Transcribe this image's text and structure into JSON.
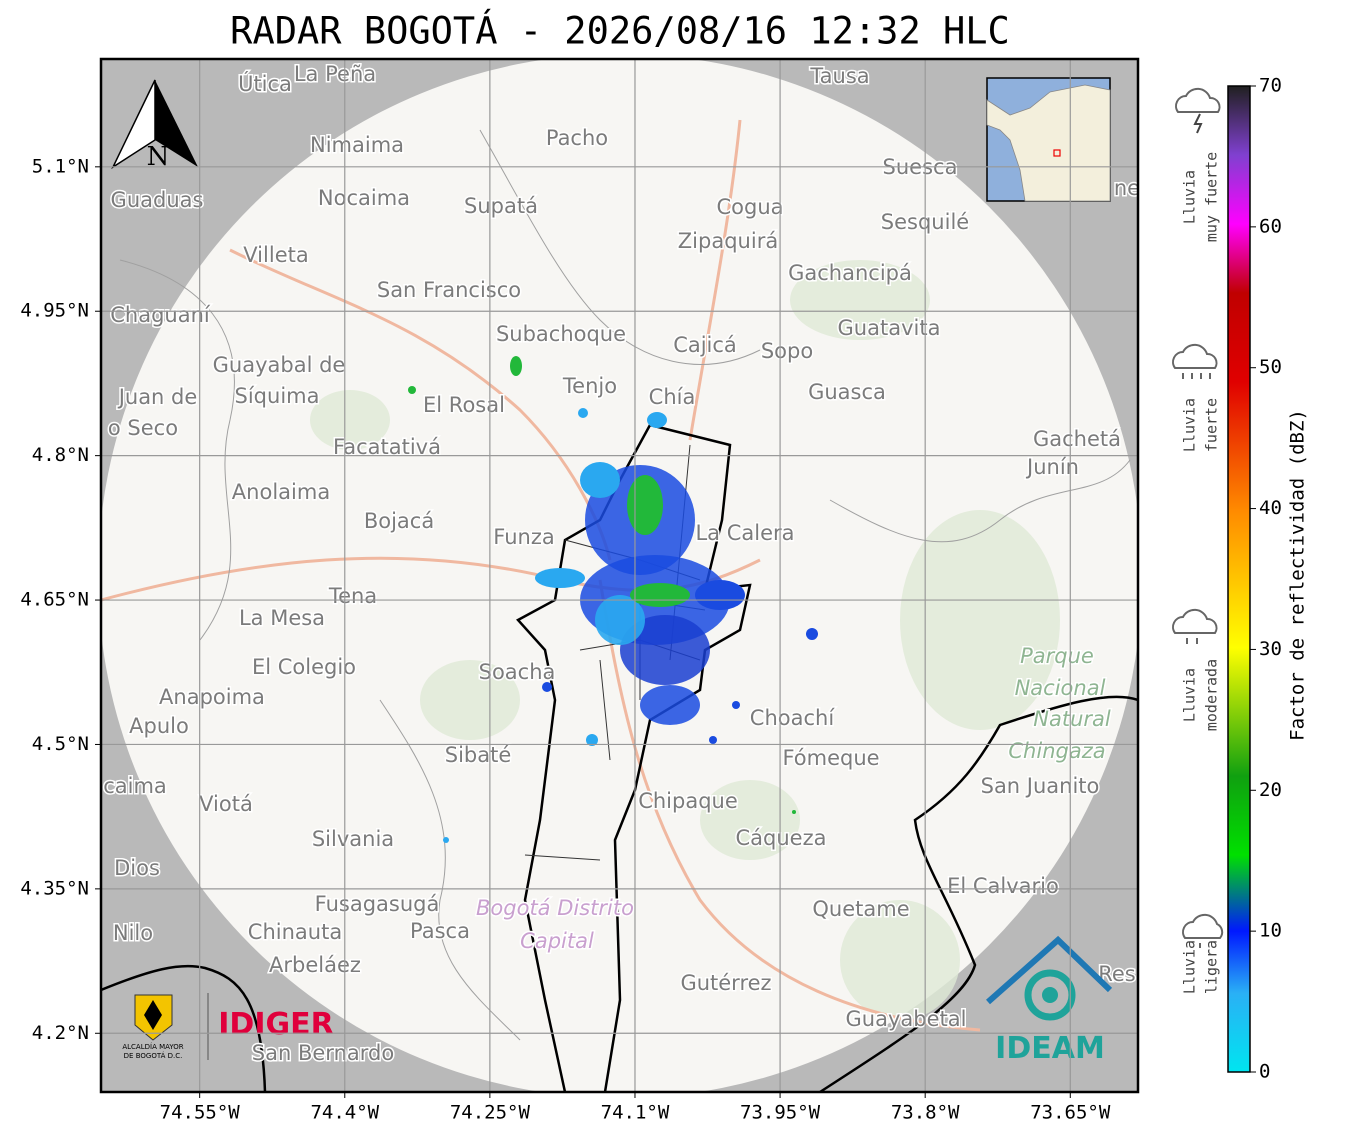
{
  "map": {
    "title": "RADAR BOGOTÁ - 2026/08/16 12:32 HLC",
    "xlim": [
      -74.652,
      -73.58
    ],
    "ylim": [
      4.139,
      5.212
    ],
    "xticks": [
      {
        "value": -74.55,
        "label": "74.55°W"
      },
      {
        "value": -74.4,
        "label": "74.4°W"
      },
      {
        "value": -74.25,
        "label": "74.25°W"
      },
      {
        "value": -74.1,
        "label": "74.1°W"
      },
      {
        "value": -73.95,
        "label": "73.95°W"
      },
      {
        "value": -73.8,
        "label": "73.8°W"
      },
      {
        "value": -73.65,
        "label": "73.65°W"
      }
    ],
    "yticks": [
      {
        "value": 5.1,
        "label": "5.1°N"
      },
      {
        "value": 4.95,
        "label": "4.95°N"
      },
      {
        "value": 4.8,
        "label": "4.8°N"
      },
      {
        "value": 4.65,
        "label": "4.65°N"
      },
      {
        "value": 4.5,
        "label": "4.5°N"
      },
      {
        "value": 4.35,
        "label": "4.35°N"
      },
      {
        "value": 4.2,
        "label": "4.2°N"
      }
    ],
    "grid": true,
    "north": "N",
    "places": [
      "Útica",
      "La Peña",
      "Tausa",
      "Pacho",
      "Nimaima",
      "Guaduas",
      "Nocaima",
      "Supatá",
      "Cogua",
      "Suesca",
      "Sesquilé",
      "Zipaquirá",
      "Villeta",
      "Gachancipá",
      "San Francisco",
      "Chaguaní",
      "Guatavita",
      "Subachoque",
      "Cajicá",
      "Sopo",
      "Guayabal de",
      "Síquima",
      "Juan de",
      "o Seco",
      "Tenjo",
      "Chía",
      "Guasca",
      "El Rosal",
      "Facatativá",
      "Gachetá",
      "Junín",
      "Anolaima",
      "Bojacá",
      "Funza",
      "La Calera",
      "Tena",
      "La Mesa",
      "El Colegio",
      "Soacha",
      "Anapoima",
      "Apulo",
      "Choachí",
      "Sibaté",
      "Fómeque",
      "San Juanito",
      "caima",
      "Viotá",
      "Chipaque",
      "Silvania",
      "Cáqueza",
      "Dios",
      "El Calvario",
      "Fusagasugá",
      "Quetame",
      "Nilo",
      "Chinauta",
      "Pasca",
      "Arbeláez",
      "Gutérrez",
      "Guayabetal",
      "San Bernardo",
      "Res",
      "ne"
    ],
    "park": [
      "Parque",
      "Nacional",
      "Natural",
      "Chingaza"
    ],
    "district": [
      "Bogotá Distrito",
      "Capital"
    ],
    "logos": {
      "alcaldia": [
        "ALCALDÍA MAYOR",
        "DE BOGOTÁ D.C."
      ],
      "idiger": "IDIGER",
      "ideam": "IDEAM"
    }
  },
  "colorbar": {
    "label": "Factor de reflectividad (dBZ)",
    "lim": [
      0,
      70
    ],
    "ticks": [
      0,
      10,
      20,
      30,
      40,
      50,
      60,
      70
    ],
    "legend": [
      [
        "Lluvia",
        "muy fuerte"
      ],
      [
        "Lluvia",
        "fuerte"
      ],
      [
        "Lluvia",
        "moderada"
      ],
      [
        "Lluvia",
        "ligera"
      ]
    ]
  }
}
